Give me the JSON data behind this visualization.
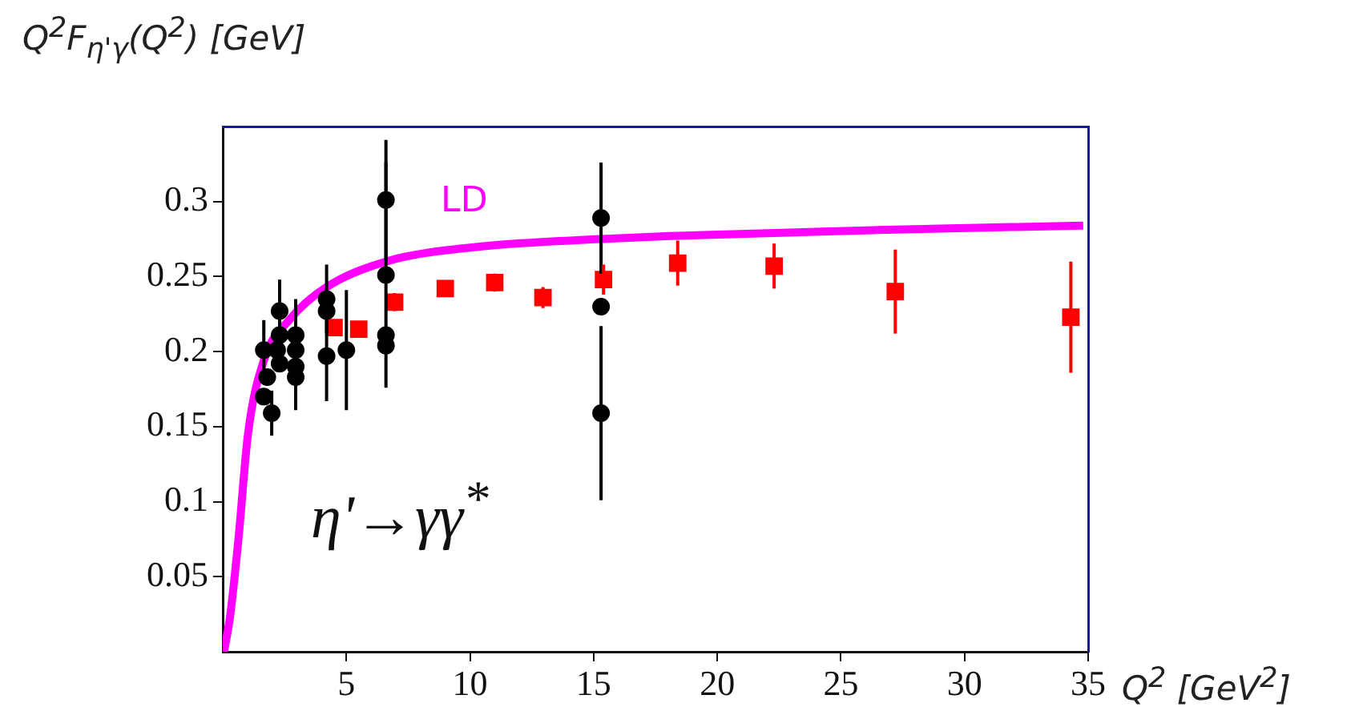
{
  "chart_data": {
    "type": "scatter",
    "ylabel": "Q$^{2}$F$_{η'γ}$(Q$^{2}$) [GeV]",
    "xlabel": "Q$^{2}$ [GeV$^{2}$]",
    "annotations": [
      "η'→γγ$^{*}$"
    ],
    "xlim": [
      0,
      35
    ],
    "xticks": [
      5,
      10,
      15,
      20,
      25,
      30,
      35
    ],
    "ylim": [
      0,
      0.35
    ],
    "yticks": [
      0.05,
      0.1,
      0.15,
      0.2,
      0.25,
      0.3
    ],
    "grid": false,
    "legend": false,
    "series": [
      {
        "type": "line",
        "name": "LD",
        "color": "#ff00ff",
        "marker": "none",
        "x": [
          0.05,
          0.3,
          0.64,
          1.02,
          1.66,
          2.74,
          4.2,
          6.6,
          10.4,
          15.3,
          18.1,
          26.5,
          34.8
        ],
        "values": [
          0,
          0.024,
          0.076,
          0.145,
          0.194,
          0.222,
          0.243,
          0.26,
          0.27,
          0.275,
          0.277,
          0.281,
          0.284
        ]
      },
      {
        "color": "#000000",
        "marker": "circle",
        "x": [
          1.66,
          1.66,
          1.98,
          1.8,
          2.2,
          2.3,
          2.3,
          2.3,
          2.95,
          2.95,
          2.95,
          2.95,
          4.2,
          4.2,
          4.2,
          5.0,
          6.6,
          6.6,
          6.6,
          6.6,
          15.3,
          15.3,
          15.3
        ],
        "values": [
          0.201,
          0.17,
          0.159,
          0.183,
          0.201,
          0.227,
          0.211,
          0.192,
          0.211,
          0.201,
          0.19,
          0.183,
          0.235,
          0.227,
          0.197,
          0.201,
          0.301,
          0.251,
          0.211,
          0.204,
          0.289,
          0.23,
          0.159
        ],
        "errors": [
          0.02,
          null,
          0.015,
          null,
          null,
          0.021,
          null,
          null,
          0.024,
          null,
          null,
          0.022,
          0.023,
          null,
          0.03,
          0.04,
          0.04,
          0.075,
          null,
          null,
          0.037,
          null,
          0.058
        ]
      },
      {
        "color": "#ff0000",
        "marker": "square",
        "x": [
          4.5,
          5.5,
          6.95,
          9.0,
          11.0,
          12.95,
          15.4,
          18.4,
          22.3,
          27.2,
          34.3
        ],
        "values": [
          0.216,
          0.215,
          0.233,
          0.242,
          0.246,
          0.236,
          0.248,
          0.259,
          0.257,
          0.24,
          0.223
        ],
        "errors": [
          0.005,
          0.005,
          0.006,
          0.005,
          0.006,
          0.007,
          0.01,
          0.015,
          0.015,
          0.028,
          0.037
        ]
      }
    ]
  }
}
